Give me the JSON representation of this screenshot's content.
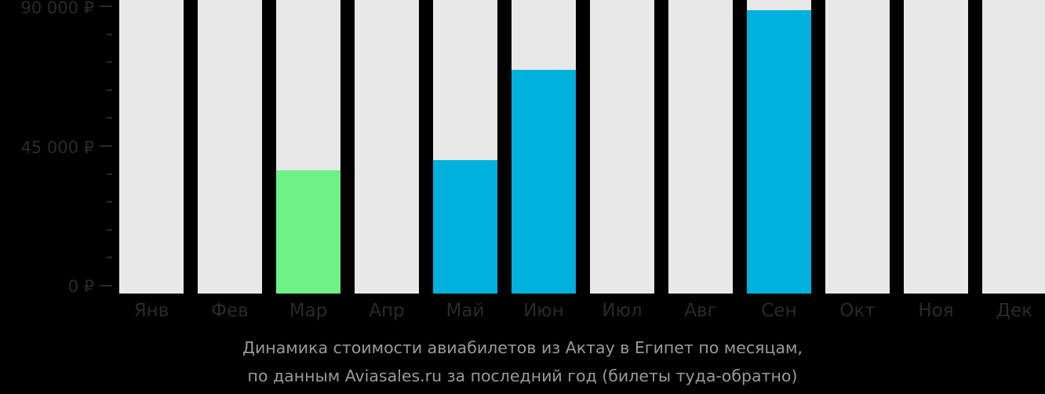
{
  "chart_data": {
    "type": "bar",
    "title": "Динамика стоимости авиабилетов из Актау в Египет по месяцам,",
    "subtitle": "по данным Aviasales.ru за последний год (билеты туда-обратно)",
    "xlabel": "",
    "ylabel": "",
    "ylim": [
      0,
      90000
    ],
    "yticks": [
      "0 ₽",
      "45 000 ₽",
      "90 000 ₽"
    ],
    "categories": [
      "Янв",
      "Фев",
      "Мар",
      "Апр",
      "Май",
      "Июн",
      "Июл",
      "Авг",
      "Сен",
      "Окт",
      "Ноя",
      "Дек"
    ],
    "values": [
      null,
      null,
      37200,
      null,
      40400,
      69500,
      null,
      null,
      88700,
      null,
      null,
      null
    ],
    "colors": {
      "background_bar": "#e8e8e8",
      "cheapest": "#6ef285",
      "regular": "#00b1dd"
    },
    "highlight": {
      "Мар": "cheapest"
    },
    "grid": false,
    "legend": null
  },
  "axis": {
    "y0": "0 ₽",
    "y45": "45 000 ₽",
    "y90": "90 000 ₽"
  },
  "caption": {
    "line1": "Динамика стоимости авиабилетов из Актау в Египет по месяцам,",
    "line2": "по данным Aviasales.ru за последний год (билеты туда-обратно)"
  }
}
